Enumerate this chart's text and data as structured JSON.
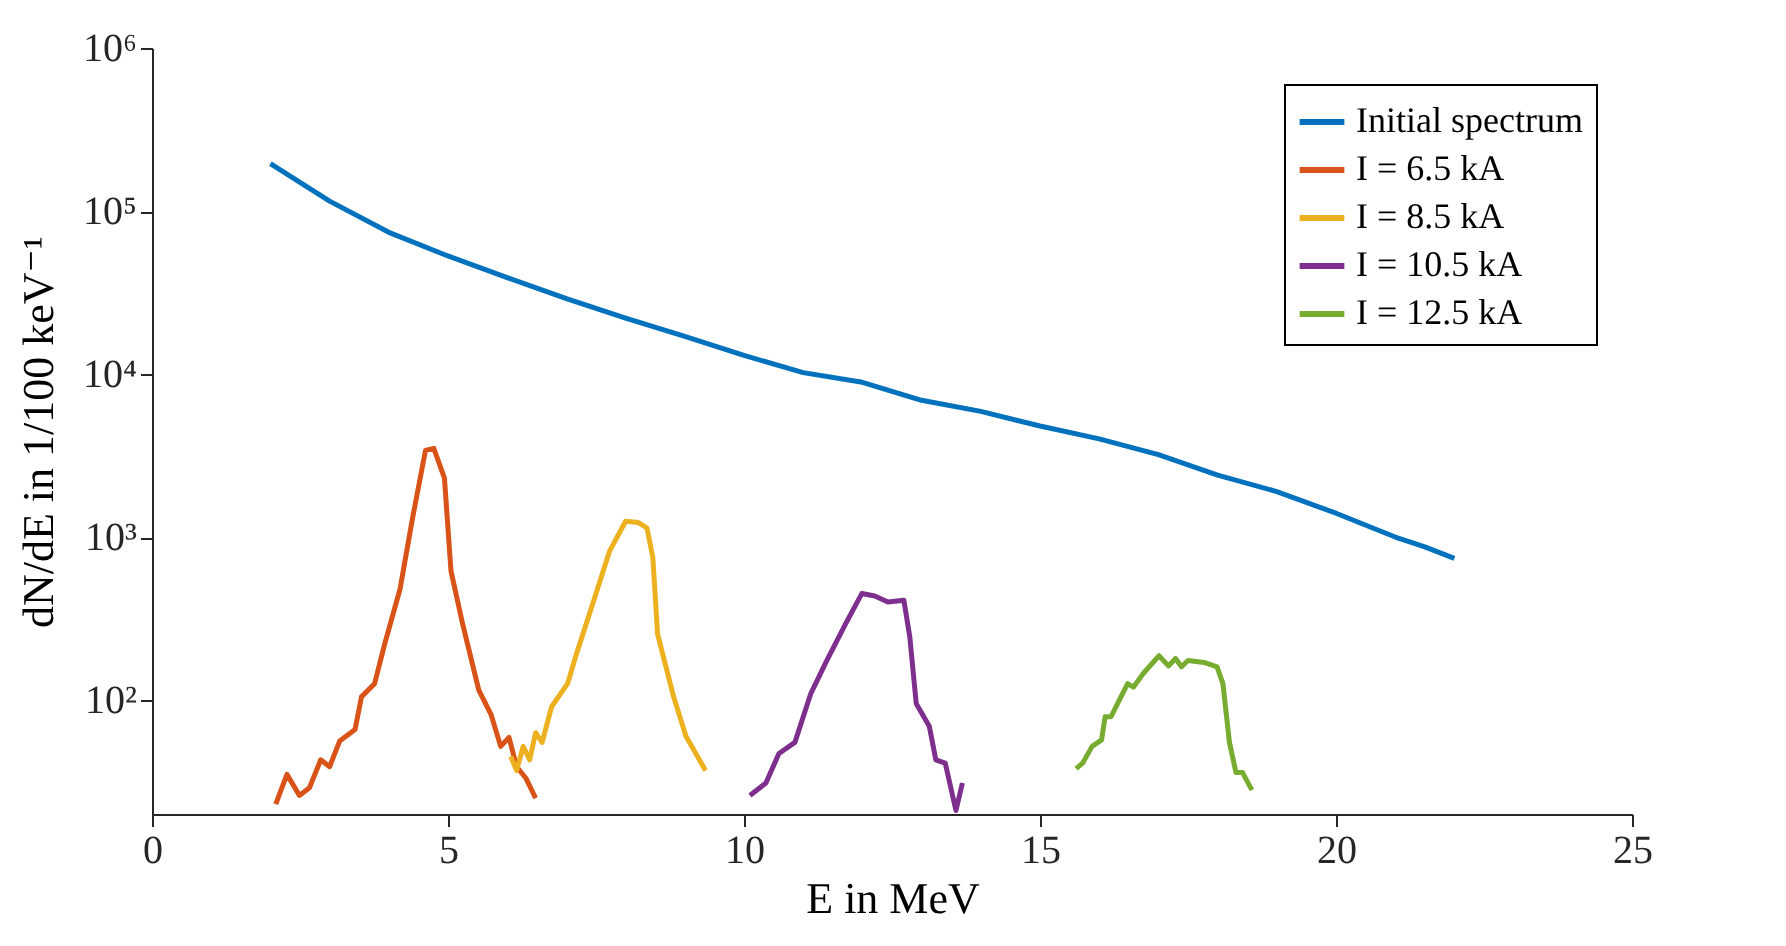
{
  "chart_data": {
    "type": "line",
    "xlabel": "E in MeV",
    "ylabel": "dN/dE in 1/100 keV⁻¹",
    "xlim": [
      0,
      25
    ],
    "xticks": [
      0,
      5,
      10,
      15,
      20,
      25
    ],
    "ylim": [
      20,
      1000000
    ],
    "yticks": [
      {
        "value": 100,
        "label": "10²"
      },
      {
        "value": 1000,
        "label": "10³"
      },
      {
        "value": 10000,
        "label": "10⁴"
      },
      {
        "value": 100000,
        "label": "10⁵"
      },
      {
        "value": 1000000,
        "label": "10⁶"
      }
    ],
    "log": "y",
    "legend": "top right",
    "series": [
      {
        "name": "Initial spectrum",
        "color": "#0072bd",
        "x": [
          2,
          2.5,
          3,
          4,
          5,
          6,
          7,
          8,
          9,
          10,
          11,
          12,
          13,
          14,
          15,
          16,
          17,
          18,
          19,
          20,
          21,
          21.5,
          22
        ],
        "values": [
          195000,
          150000,
          115000,
          74000,
          53000,
          39000,
          29000,
          22000,
          17000,
          13000,
          10200,
          8900,
          6900,
          5900,
          4800,
          4000,
          3200,
          2400,
          1900,
          1400,
          1000,
          870,
          740
        ]
      },
      {
        "name": "I = 6.5 kA",
        "color": "#d95319",
        "x": [
          2.09,
          2.28,
          2.49,
          2.66,
          2.85,
          3.0,
          3.17,
          3.43,
          3.54,
          3.76,
          3.93,
          4.19,
          4.4,
          4.62,
          4.76,
          4.94,
          5.05,
          5.25,
          5.52,
          5.73,
          5.89,
          6.03,
          6.16,
          6.32,
          6.48
        ],
        "values": [
          23,
          35,
          26,
          29,
          43,
          39,
          56,
          66,
          105,
          126,
          220,
          480,
          1300,
          3400,
          3500,
          2300,
          620,
          290,
          115,
          81,
          52,
          59,
          39,
          33,
          25
        ]
      },
      {
        "name": "I = 8.5 kA",
        "color": "#edb120",
        "x": [
          6.06,
          6.16,
          6.27,
          6.38,
          6.48,
          6.59,
          6.75,
          7.02,
          7.17,
          7.46,
          7.73,
          8.0,
          8.21,
          8.36,
          8.46,
          8.54,
          8.81,
          9.02,
          9.35
        ],
        "values": [
          45,
          37,
          52,
          43,
          63,
          55,
          91,
          126,
          192,
          405,
          820,
          1250,
          1230,
          1140,
          750,
          255,
          105,
          60,
          37
        ]
      },
      {
        "name": "I = 10.5 kA",
        "color": "#7e2f8e",
        "x": [
          10.1,
          10.37,
          10.59,
          10.86,
          11.13,
          11.4,
          11.72,
          11.99,
          12.21,
          12.43,
          12.7,
          12.8,
          12.91,
          13.13,
          13.24,
          13.4,
          13.58,
          13.69
        ],
        "values": [
          26,
          31,
          47,
          55,
          110,
          175,
          295,
          450,
          435,
          400,
          410,
          245,
          95,
          69,
          43,
          41,
          21,
          31
        ]
      },
      {
        "name": "I = 12.5 kA",
        "color": "#77ac30",
        "x": [
          15.61,
          15.72,
          15.88,
          16.04,
          16.1,
          16.2,
          16.31,
          16.48,
          16.58,
          16.74,
          17.01,
          17.17,
          17.29,
          17.39,
          17.5,
          17.77,
          17.99,
          18.09,
          18.2,
          18.31,
          18.42,
          18.58
        ],
        "values": [
          38,
          41,
          52,
          57,
          79,
          79,
          95,
          126,
          120,
          145,
          187,
          162,
          180,
          160,
          175,
          170,
          160,
          126,
          55,
          36,
          36,
          28
        ]
      }
    ]
  }
}
